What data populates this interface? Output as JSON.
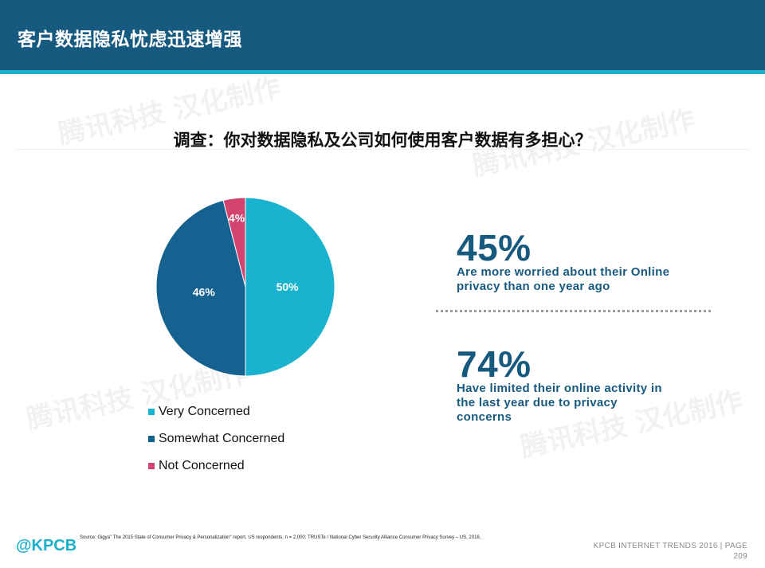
{
  "header": {
    "title": "客户数据隐私忧虑迅速增强"
  },
  "question": "调查：你对数据隐私及公司如何使用客户数据有多担心？",
  "chart_data": {
    "type": "pie",
    "title": "",
    "categories": [
      "Very Concerned",
      "Somewhat Concerned",
      "Not Concerned"
    ],
    "values": [
      50,
      46,
      4
    ],
    "labels": [
      "50%",
      "46%",
      "4%"
    ],
    "colors": [
      "#19b3cf",
      "#15618f",
      "#d2436f"
    ],
    "legend_position": "bottom"
  },
  "stats": [
    {
      "value": "45%",
      "description": "Are more worried about their Online privacy than one year ago"
    },
    {
      "value": "74%",
      "description": "Have limited their online activity in the last year due to privacy concerns"
    }
  ],
  "source": "Source: Gigya\" The 2015 State of Consumer Privacy & Personalization\" report, US respondents, n = 2,000; TRUSTe / National Cyber Security Alliance Consumer Privacy Survey – US, 2016.",
  "logo": "@KPCB",
  "footer": {
    "line1": "KPCB INTERNET TRENDS 2016  |  PAGE",
    "page": "209"
  },
  "watermark": "腾讯科技 汉化制作"
}
